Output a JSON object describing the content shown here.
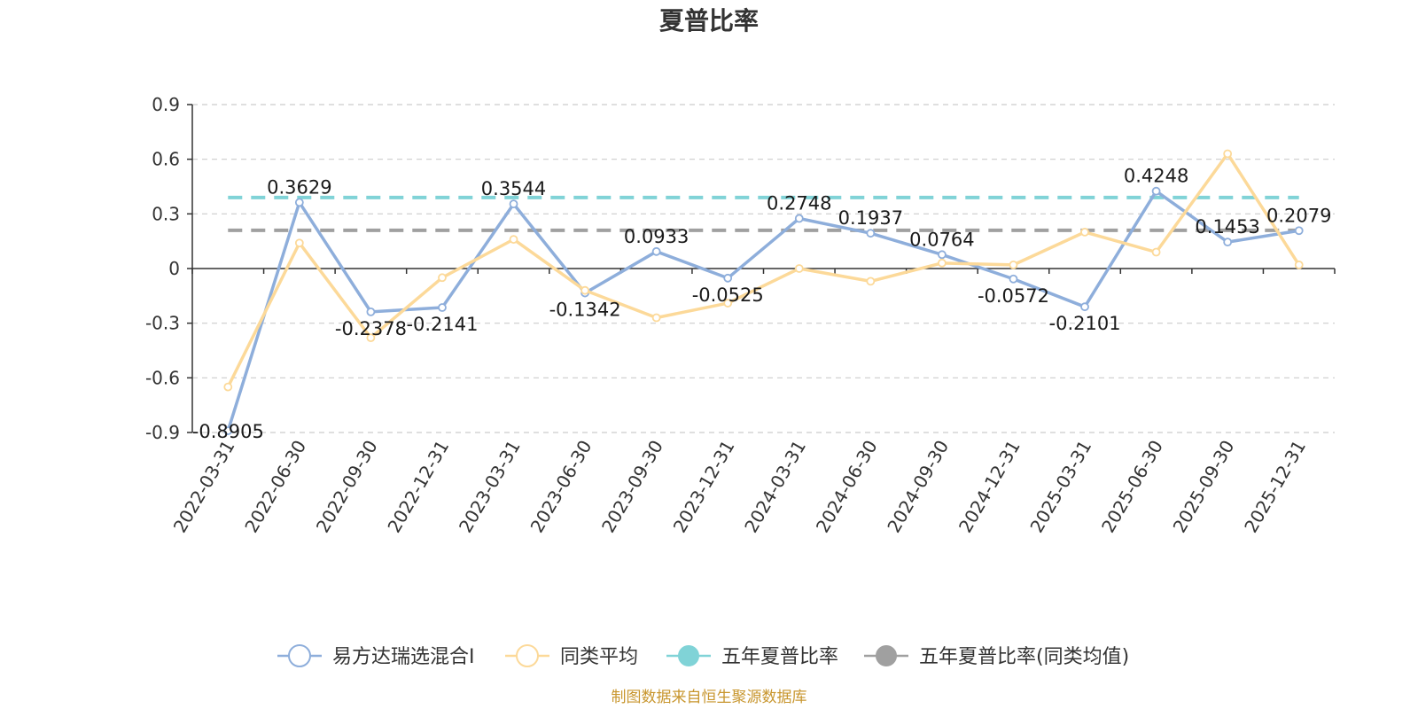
{
  "chart_data": {
    "type": "line",
    "title": "夏普比率",
    "categories": [
      "2022-03-31",
      "2022-06-30",
      "2022-09-30",
      "2022-12-31",
      "2023-03-31",
      "2023-06-30",
      "2023-09-30",
      "2023-12-31",
      "2024-03-31",
      "2024-06-30",
      "2024-09-30",
      "2024-12-31",
      "2025-03-31",
      "2025-06-30",
      "2025-09-30",
      "2025-12-31"
    ],
    "y_ticks": [
      "0.9",
      "0.6",
      "0.3",
      "0",
      "-0.3",
      "-0.6",
      "-0.9"
    ],
    "ylim": [
      -0.9,
      0.9
    ],
    "grid": true,
    "legend_position": "bottom",
    "series": [
      {
        "name": "易方达瑞选混合I",
        "color": "#8eaedb",
        "values": [
          -0.8905,
          0.3629,
          -0.2378,
          -0.2141,
          0.3544,
          -0.1342,
          0.0933,
          -0.0525,
          0.2748,
          0.1937,
          0.0764,
          -0.0572,
          -0.2101,
          0.4248,
          0.1453,
          0.2079
        ],
        "labels": [
          "-0.8905",
          "0.3629",
          "-0.2378",
          "-0.2141",
          "0.3544",
          "-0.1342",
          "0.0933",
          "-0.0525",
          "0.2748",
          "0.1937",
          "0.0764",
          "-0.0572",
          "-0.2101",
          "0.4248",
          "0.1453",
          "0.2079"
        ]
      },
      {
        "name": "同类平均",
        "color": "#fcd999",
        "values": [
          -0.65,
          0.14,
          -0.38,
          -0.05,
          0.16,
          -0.12,
          -0.27,
          -0.19,
          0.0,
          -0.07,
          0.03,
          0.02,
          0.2,
          0.09,
          0.63,
          0.02
        ]
      }
    ],
    "reference_lines": [
      {
        "name": "五年夏普比率",
        "color": "#80d3d7",
        "value": 0.39
      },
      {
        "name": "五年夏普比率(同类均值)",
        "color": "#a0a0a0",
        "value": 0.21
      }
    ],
    "source": "制图数据来自恒生聚源数据库"
  }
}
